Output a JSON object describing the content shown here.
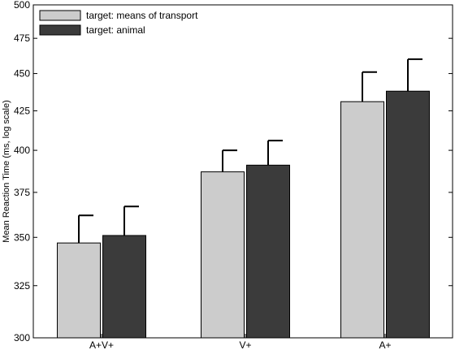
{
  "chart_data": {
    "type": "bar",
    "categories": [
      "A+V+",
      "V+",
      "A+"
    ],
    "series": [
      {
        "name": "target: means of transport",
        "values": [
          347,
          387,
          431
        ],
        "errors": [
          15,
          13,
          20
        ],
        "color": "#cccccc"
      },
      {
        "name": "target: animal",
        "values": [
          351,
          391,
          438
        ],
        "errors": [
          16,
          15,
          22
        ],
        "color": "#3b3b3b"
      }
    ],
    "ylabel": "Mean Reaction Time (ms, log scale)",
    "xlabel": "",
    "ylim": [
      300,
      500
    ],
    "yscale": "log",
    "yticks": [
      300,
      325,
      350,
      375,
      400,
      425,
      450,
      475,
      500
    ],
    "grid": false,
    "legend_position": "top-left"
  }
}
